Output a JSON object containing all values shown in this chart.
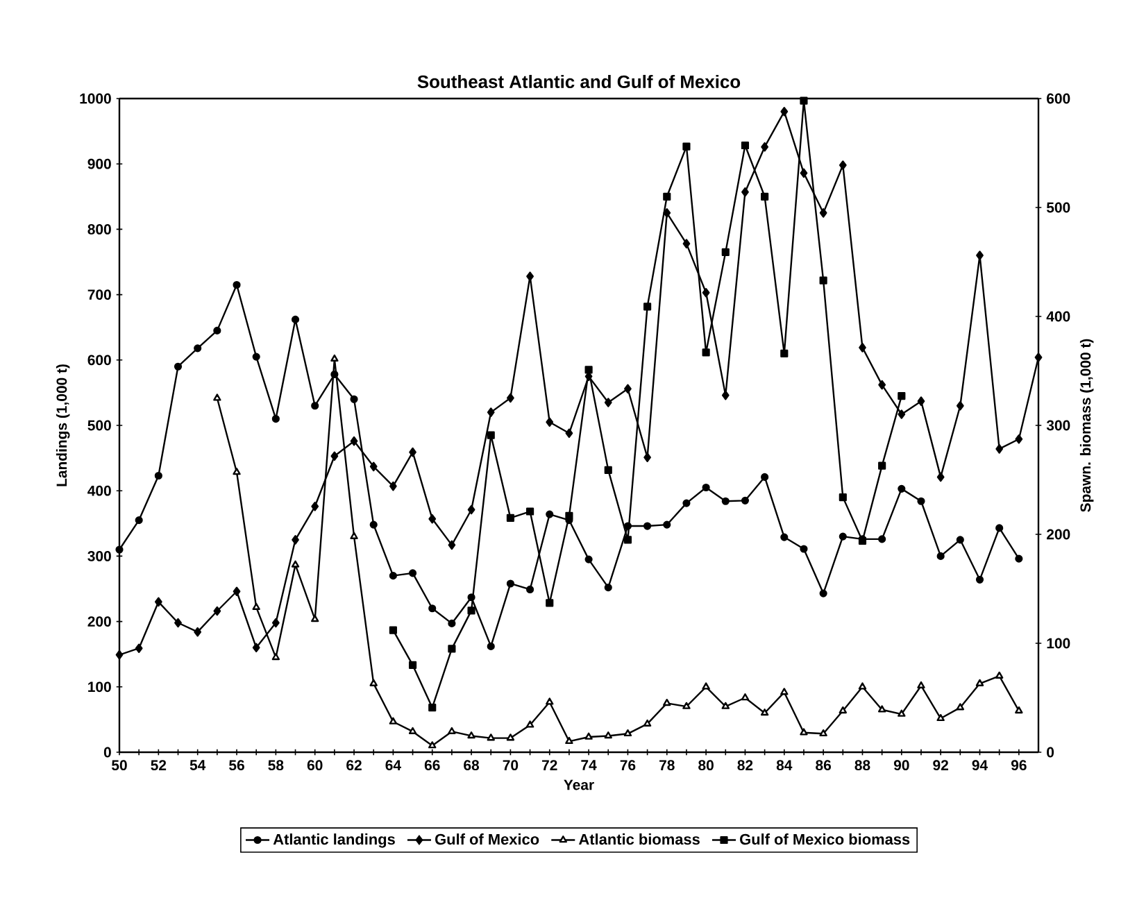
{
  "chart_data": {
    "type": "line",
    "title": "Southeast Atlantic and Gulf of Mexico",
    "xlabel": "Year",
    "ylabel": "Landings (1,000 t)",
    "y2label": "Spawn. biomass (1,000 t)",
    "x": [
      50,
      51,
      52,
      53,
      54,
      55,
      56,
      57,
      58,
      59,
      60,
      61,
      62,
      63,
      64,
      65,
      66,
      67,
      68,
      69,
      70,
      71,
      72,
      73,
      74,
      75,
      76,
      77,
      78,
      79,
      80,
      81,
      82,
      83,
      84,
      85,
      86,
      87,
      88,
      89,
      90,
      91,
      92,
      93,
      94,
      95,
      96,
      97
    ],
    "xlim": [
      50,
      97
    ],
    "xticks": [
      50,
      {
        "value": 51,
        "label": null
      },
      52,
      {
        "value": 53,
        "label": null
      },
      54,
      {
        "value": 55,
        "label": null
      },
      56,
      {
        "value": 57,
        "label": null
      },
      58,
      {
        "value": 59,
        "label": null
      },
      60,
      {
        "value": 61,
        "label": null
      },
      62,
      {
        "value": 63,
        "label": null
      },
      64,
      {
        "value": 65,
        "label": null
      },
      66,
      {
        "value": 67,
        "label": null
      },
      68,
      {
        "value": 69,
        "label": null
      },
      70,
      {
        "value": 71,
        "label": null
      },
      72,
      {
        "value": 73,
        "label": null
      },
      74,
      {
        "value": 75,
        "label": null
      },
      76,
      {
        "value": 77,
        "label": null
      },
      78,
      {
        "value": 79,
        "label": null
      },
      80,
      {
        "value": 81,
        "label": null
      },
      82,
      {
        "value": 83,
        "label": null
      },
      84,
      {
        "value": 85,
        "label": null
      },
      86,
      {
        "value": 87,
        "label": null
      },
      88,
      {
        "value": 89,
        "label": null
      },
      90,
      {
        "value": 91,
        "label": null
      },
      92,
      {
        "value": 93,
        "label": null
      },
      94,
      {
        "value": 95,
        "label": null
      },
      96
    ],
    "ylim": [
      0,
      1000
    ],
    "yticks": [
      0,
      100,
      200,
      300,
      400,
      500,
      600,
      700,
      800,
      900,
      1000
    ],
    "y2lim": [
      0,
      600
    ],
    "y2ticks": [
      0,
      100,
      200,
      300,
      400,
      500,
      600
    ],
    "legend": "bottom",
    "grid": false,
    "line_style": "solid",
    "series": [
      {
        "name": "Atlantic landings",
        "color": "#000000",
        "marker": "circle",
        "values": [
          310,
          355,
          423,
          590,
          618,
          645,
          715,
          605,
          510,
          662,
          530,
          578,
          540,
          348,
          270,
          274,
          220,
          197,
          237,
          162,
          258,
          249,
          364,
          355,
          295,
          252,
          346,
          346,
          348,
          381,
          405,
          384,
          385,
          421,
          329,
          311,
          243,
          330,
          326,
          326,
          403,
          384,
          300,
          325,
          264,
          343,
          296,
          null
        ]
      },
      {
        "name": "Gulf of Mexico",
        "color": "#000000",
        "marker": "diamond",
        "values": [
          149,
          159,
          230,
          198,
          184,
          216,
          246,
          160,
          198,
          325,
          376,
          453,
          476,
          437,
          407,
          459,
          357,
          317,
          371,
          520,
          542,
          728,
          505,
          488,
          575,
          535,
          556,
          451,
          825,
          778,
          703,
          546,
          857,
          926,
          980,
          886,
          825,
          898,
          619,
          562,
          517,
          537,
          421,
          530,
          760,
          464,
          479,
          604
        ]
      },
      {
        "name": "Atlantic biomass",
        "color": "#000000",
        "marker": "triangle",
        "axis": "y2",
        "values": [
          null,
          null,
          null,
          null,
          null,
          325,
          257,
          133,
          87,
          172,
          122,
          361,
          198,
          63,
          28,
          19,
          6,
          19,
          15,
          13,
          13,
          25,
          46,
          10,
          14,
          15,
          17,
          26,
          45,
          42,
          60,
          42,
          50,
          36,
          55,
          18,
          17,
          38,
          60,
          39,
          35,
          61,
          31,
          41,
          63,
          70,
          38,
          null
        ]
      },
      {
        "name": "Gulf of Mexico biomass",
        "color": "#000000",
        "marker": "square",
        "axis": "y2",
        "values": [
          null,
          null,
          null,
          null,
          null,
          null,
          null,
          null,
          null,
          null,
          null,
          null,
          null,
          null,
          112,
          80,
          41,
          95,
          130,
          291,
          215,
          221,
          137,
          217,
          351,
          259,
          195,
          409,
          510,
          556,
          367,
          459,
          557,
          510,
          366,
          598,
          433,
          234,
          194,
          263,
          327,
          null,
          null,
          null,
          null,
          null,
          null,
          null
        ]
      }
    ]
  }
}
